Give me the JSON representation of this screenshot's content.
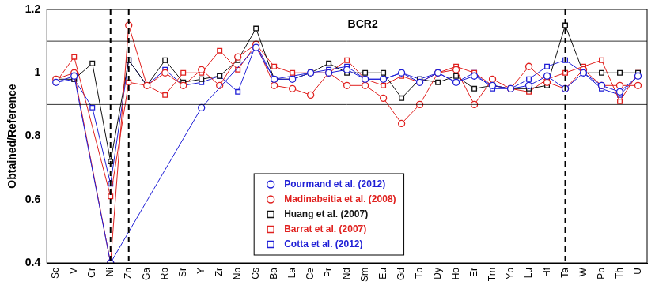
{
  "chart_data": {
    "type": "line",
    "title": "BCR2",
    "y_label": "Obtained/Reference",
    "categories": [
      "Sc",
      "V",
      "Cr",
      "Ni",
      "Zn",
      "Ga",
      "Rb",
      "Sr",
      "Y",
      "Zr",
      "Nb",
      "Cs",
      "Ba",
      "La",
      "Ce",
      "Pr",
      "Nd",
      "Sm",
      "Eu",
      "Gd",
      "Tb",
      "Dy",
      "Ho",
      "Er",
      "Tm",
      "Yb",
      "Lu",
      "Hf",
      "Ta",
      "W",
      "Pb",
      "Th",
      "U"
    ],
    "ylim": [
      0.4,
      1.2
    ],
    "yticks": [
      0.4,
      0.6,
      0.8,
      1,
      1.2
    ],
    "hlines": [
      0.9,
      1.1
    ],
    "vlines": [
      "Ni",
      "Zn",
      "Ta"
    ],
    "grid": false,
    "legend": "bottom",
    "series": [
      {
        "name": "Pourmand et al. (2012)",
        "color": "#1f1fd6",
        "marker": "circle",
        "values": [
          0.97,
          0.99,
          null,
          0.4,
          null,
          null,
          null,
          null,
          0.89,
          null,
          null,
          1.08,
          0.98,
          0.98,
          1.0,
          1.0,
          1.01,
          0.98,
          0.98,
          1.0,
          0.97,
          1.0,
          0.97,
          0.99,
          0.96,
          0.95,
          0.96,
          0.99,
          0.95,
          1.0,
          0.96,
          0.94,
          0.99
        ]
      },
      {
        "name": "Madinabeitia et al. (2008)",
        "color": "#e0201e",
        "marker": "circle",
        "values": [
          0.98,
          1.0,
          null,
          0.4,
          1.15,
          0.96,
          1.0,
          0.96,
          1.01,
          0.96,
          1.05,
          1.09,
          0.96,
          0.95,
          0.93,
          1.0,
          0.96,
          0.96,
          0.92,
          0.84,
          0.9,
          1.0,
          1.01,
          0.9,
          0.98,
          0.95,
          1.02,
          0.97,
          0.95,
          1.01,
          0.96,
          0.96,
          0.96
        ]
      },
      {
        "name": "Huang et al. (2007)",
        "color": "#111111",
        "marker": "square",
        "values": [
          0.98,
          0.98,
          1.03,
          0.72,
          1.04,
          0.96,
          1.04,
          0.97,
          0.98,
          0.99,
          1.04,
          1.14,
          0.98,
          0.98,
          1.0,
          1.03,
          1.0,
          1.0,
          1.0,
          0.92,
          0.98,
          0.97,
          0.99,
          0.95,
          0.96,
          0.95,
          0.95,
          0.96,
          1.15,
          1.0,
          1.0,
          1.0,
          1.0
        ]
      },
      {
        "name": "Barrat et al. (2007)",
        "color": "#e0201e",
        "marker": "square",
        "values": [
          0.97,
          1.05,
          null,
          0.61,
          0.97,
          0.96,
          0.93,
          1.0,
          1.0,
          1.07,
          1.01,
          1.09,
          1.02,
          1.0,
          1.0,
          1.0,
          1.04,
          0.98,
          0.96,
          0.99,
          0.97,
          1.0,
          1.02,
          1.0,
          0.96,
          0.95,
          0.94,
          0.98,
          1.0,
          1.02,
          1.04,
          0.91,
          1.0
        ]
      },
      {
        "name": "Cotta et al. (2012)",
        "color": "#1f1fd6",
        "marker": "square",
        "values": [
          0.97,
          0.98,
          0.89,
          0.65,
          1.04,
          0.96,
          1.01,
          0.96,
          0.97,
          0.99,
          0.94,
          1.09,
          0.98,
          0.99,
          1.0,
          1.01,
          1.02,
          0.98,
          0.98,
          1.0,
          0.98,
          1.0,
          0.97,
          1.0,
          0.95,
          0.95,
          0.98,
          1.02,
          1.04,
          1.0,
          0.95,
          0.93,
          0.99
        ]
      }
    ]
  }
}
